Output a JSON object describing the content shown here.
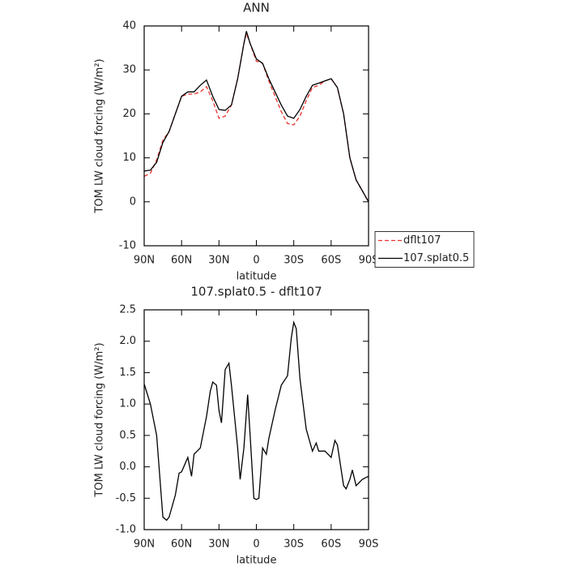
{
  "chart_data": [
    {
      "type": "line",
      "title": "ANN",
      "xlabel": "latitude",
      "ylabel": "TOM LW cloud forcing (W/m²)",
      "x": [
        90,
        85,
        80,
        75,
        70,
        65,
        60,
        55,
        50,
        45,
        40,
        35,
        30,
        25,
        20,
        15,
        10,
        8,
        5,
        0,
        -5,
        -10,
        -15,
        -20,
        -25,
        -30,
        -35,
        -40,
        -45,
        -50,
        -55,
        -60,
        -65,
        -70,
        -75,
        -80,
        -85,
        -90
      ],
      "series": [
        {
          "name": "dflt107",
          "color": "#e8312a",
          "linestyle": "dashed",
          "values": [
            5.8,
            6.5,
            9.5,
            14,
            16,
            20,
            24,
            24.5,
            24.5,
            25,
            26.2,
            23,
            19,
            19.5,
            22,
            28,
            36,
            38.3,
            36,
            32,
            31.5,
            27.5,
            24,
            20.5,
            17.8,
            17.5,
            19.5,
            23,
            26,
            26.5,
            27.5,
            28,
            26,
            20,
            10,
            5,
            2.5,
            0
          ]
        },
        {
          "name": "107.splat0.5",
          "color": "#000000",
          "linestyle": "solid",
          "values": [
            7,
            7.2,
            9,
            13.5,
            16,
            20,
            24,
            25,
            25,
            26.5,
            27.7,
            24,
            21,
            20.8,
            22,
            28,
            36,
            38.8,
            36,
            32.5,
            31.5,
            28,
            25,
            22,
            19.5,
            19,
            21,
            24,
            26.5,
            27,
            27.5,
            28,
            26,
            20,
            10,
            5,
            2.5,
            0
          ]
        }
      ],
      "xlim": [
        90,
        -90
      ],
      "xticks": [
        {
          "value": 90,
          "label": "90N"
        },
        {
          "value": 60,
          "label": "60N"
        },
        {
          "value": 30,
          "label": "30N"
        },
        0,
        {
          "value": -30,
          "label": "30S"
        },
        {
          "value": -60,
          "label": "60S"
        },
        {
          "value": -90,
          "label": "90S"
        }
      ],
      "ylim": [
        -10,
        40
      ],
      "yticks": [
        -10,
        0,
        10,
        20,
        30,
        40
      ],
      "legend": "right"
    },
    {
      "type": "line",
      "title": "107.splat0.5 - dflt107",
      "xlabel": "latitude",
      "ylabel": "TOM LW cloud forcing (W/m²)",
      "x": [
        90,
        85,
        80,
        75,
        72,
        70,
        65,
        62,
        60,
        55,
        52,
        50,
        45,
        40,
        37,
        35,
        32,
        30,
        28,
        25,
        22,
        20,
        15,
        13,
        10,
        7,
        5,
        2,
        0,
        -2,
        -5,
        -8,
        -10,
        -15,
        -20,
        -25,
        -28,
        -30,
        -32,
        -35,
        -40,
        -45,
        -48,
        -50,
        -55,
        -60,
        -63,
        -65,
        -70,
        -72,
        -75,
        -77,
        -80,
        -85,
        -90
      ],
      "series": [
        {
          "color": "#000000",
          "linestyle": "solid",
          "values": [
            1.32,
            1.0,
            0.5,
            -0.8,
            -0.85,
            -0.8,
            -0.45,
            -0.1,
            -0.08,
            0.15,
            -0.15,
            0.2,
            0.3,
            0.8,
            1.2,
            1.35,
            1.3,
            0.9,
            0.7,
            1.55,
            1.65,
            1.3,
            0.3,
            -0.2,
            0.3,
            1.15,
            0.5,
            -0.5,
            -0.52,
            -0.5,
            0.3,
            0.2,
            0.45,
            0.9,
            1.3,
            1.45,
            2.05,
            2.3,
            2.2,
            1.4,
            0.6,
            0.25,
            0.38,
            0.25,
            0.25,
            0.15,
            0.42,
            0.35,
            -0.3,
            -0.35,
            -0.2,
            -0.05,
            -0.3,
            -0.2,
            -0.15
          ]
        }
      ],
      "xlim": [
        90,
        -90
      ],
      "xticks": [
        {
          "value": 90,
          "label": "90N"
        },
        {
          "value": 60,
          "label": "60N"
        },
        {
          "value": 30,
          "label": "30N"
        },
        0,
        {
          "value": -30,
          "label": "30S"
        },
        {
          "value": -60,
          "label": "60S"
        },
        {
          "value": -90,
          "label": "90S"
        }
      ],
      "ylim": [
        -1,
        2.5
      ],
      "yticks": [
        {
          "value": -1,
          "label": "-1.0"
        },
        -0.5,
        {
          "value": 0,
          "label": "0.0"
        },
        0.5,
        {
          "value": 1,
          "label": "1.0"
        },
        1.5,
        {
          "value": 2,
          "label": "2.0"
        },
        2.5
      ]
    }
  ]
}
